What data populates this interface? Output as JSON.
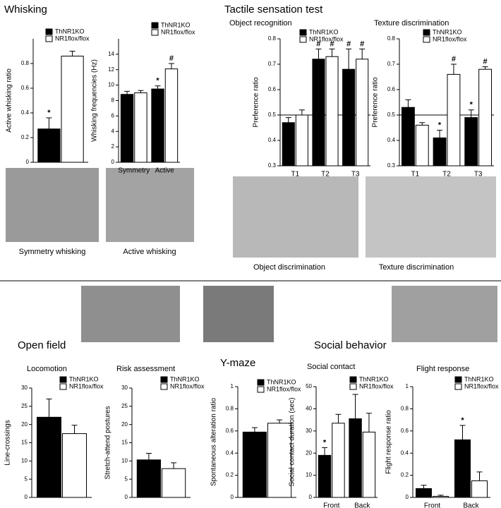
{
  "headings": [
    "Whisking",
    "Tactile sensation test",
    "Open field",
    "Y-maze",
    "Social behavior"
  ],
  "captions": [
    "Symmetry whisking",
    "Active whisking",
    "Object discrimination",
    "Texture discrimination"
  ],
  "chart_data": [
    {
      "type": "bar",
      "ylabel": "Active whisking ratio",
      "categories": [
        null
      ],
      "ylim": [
        0,
        1
      ],
      "yticks": [
        0,
        0.2,
        0.4,
        0.6,
        0.8
      ],
      "series": [
        {
          "name": "ThNR1KO",
          "color": "#000000",
          "values": [
            0.27
          ],
          "errors": [
            0.09
          ],
          "markers": [
            "*"
          ]
        },
        {
          "name": "NR1flox/flox",
          "color": "#ffffff",
          "values": [
            0.86
          ],
          "errors": [
            0.04
          ],
          "markers": [
            null
          ]
        }
      ]
    },
    {
      "type": "bar",
      "ylabel": "Whisking frequencies (Hz)",
      "categories": [
        "Symmetry",
        "Active"
      ],
      "ylim": [
        0,
        16
      ],
      "yticks": [
        0,
        2,
        4,
        6,
        8,
        10,
        12,
        14
      ],
      "series": [
        {
          "name": "ThNR1KO",
          "color": "#000000",
          "values": [
            8.8,
            9.5
          ],
          "errors": [
            0.4,
            0.4
          ],
          "markers": [
            null,
            "*"
          ]
        },
        {
          "name": "NR1flox/flox",
          "color": "#ffffff",
          "values": [
            9.0,
            12.1
          ],
          "errors": [
            0.3,
            0.7
          ],
          "markers": [
            null,
            "#"
          ]
        }
      ]
    },
    {
      "type": "bar",
      "title": "Object recognition",
      "ylabel": "Preference ratio",
      "categories": [
        "T1",
        "T2",
        "T3"
      ],
      "ylim": [
        0.3,
        0.8
      ],
      "yticks": [
        0.3,
        0.4,
        0.5,
        0.6,
        0.7,
        0.8
      ],
      "ref_line": 0.5,
      "series": [
        {
          "name": "ThNR1KO",
          "color": "#000000",
          "values": [
            0.47,
            0.72,
            0.68
          ],
          "errors": [
            0.02,
            0.04,
            0.08
          ],
          "markers": [
            null,
            "#",
            "#"
          ]
        },
        {
          "name": "NR1flox/flox",
          "color": "#ffffff",
          "values": [
            0.5,
            0.73,
            0.72
          ],
          "errors": [
            0.02,
            0.03,
            0.04
          ],
          "markers": [
            null,
            "#",
            "#"
          ]
        }
      ]
    },
    {
      "type": "bar",
      "title": "Texture discrimination",
      "ylabel": "Preference ratio",
      "categories": [
        "T1",
        "T2",
        "T3"
      ],
      "ylim": [
        0.3,
        0.8
      ],
      "yticks": [
        0.3,
        0.4,
        0.5,
        0.6,
        0.7,
        0.8
      ],
      "ref_line": 0.5,
      "series": [
        {
          "name": "ThNR1KO",
          "color": "#000000",
          "values": [
            0.53,
            0.41,
            0.49
          ],
          "errors": [
            0.03,
            0.03,
            0.03
          ],
          "markers": [
            null,
            "*",
            "*"
          ]
        },
        {
          "name": "NR1flox/flox",
          "color": "#ffffff",
          "values": [
            0.46,
            0.66,
            0.68
          ],
          "errors": [
            0.01,
            0.04,
            0.01
          ],
          "markers": [
            null,
            "#",
            "#"
          ]
        }
      ]
    },
    {
      "type": "bar",
      "title": "Locomotion",
      "ylabel": "Line-crossings",
      "categories": [
        null
      ],
      "ylim": [
        0,
        30
      ],
      "yticks": [
        0,
        5,
        10,
        15,
        20,
        25,
        30
      ],
      "series": [
        {
          "name": "ThNR1KO",
          "color": "#000000",
          "values": [
            22
          ],
          "errors": [
            5
          ],
          "markers": [
            null
          ]
        },
        {
          "name": "NR1flox/flox",
          "color": "#ffffff",
          "values": [
            17.5
          ],
          "errors": [
            2.3
          ],
          "markers": [
            null
          ]
        }
      ]
    },
    {
      "type": "bar",
      "title": "Risk assessment",
      "ylabel": "Stretch-attend postures",
      "categories": [
        null
      ],
      "ylim": [
        0,
        30
      ],
      "yticks": [
        0,
        5,
        10,
        15,
        20,
        25,
        30
      ],
      "series": [
        {
          "name": "ThNR1KO",
          "color": "#000000",
          "values": [
            10.3
          ],
          "errors": [
            1.8
          ],
          "markers": [
            null
          ]
        },
        {
          "name": "NR1flox/flox",
          "color": "#ffffff",
          "values": [
            7.9
          ],
          "errors": [
            1.6
          ],
          "markers": [
            null
          ]
        }
      ]
    },
    {
      "type": "bar",
      "ylabel": "Spontaneous alteration ratio",
      "categories": [
        null
      ],
      "ylim": [
        0,
        1
      ],
      "yticks": [
        0,
        0.2,
        0.4,
        0.6,
        0.8,
        1
      ],
      "series": [
        {
          "name": "ThNR1KO",
          "color": "#000000",
          "values": [
            0.59
          ],
          "errors": [
            0.04
          ],
          "markers": [
            null
          ]
        },
        {
          "name": "NR1flox/flox",
          "color": "#ffffff",
          "values": [
            0.67
          ],
          "errors": [
            0.03
          ],
          "markers": [
            null
          ]
        }
      ]
    },
    {
      "type": "bar",
      "title": "Social contact",
      "ylabel": "Social contact duration (sec)",
      "categories": [
        "Front",
        "Back"
      ],
      "ylim": [
        0,
        50
      ],
      "yticks": [
        0,
        10,
        20,
        30,
        40,
        50
      ],
      "series": [
        {
          "name": "ThNR1KO",
          "color": "#000000",
          "values": [
            19,
            35.5
          ],
          "errors": [
            3.5,
            11
          ],
          "markers": [
            "*",
            null
          ]
        },
        {
          "name": "NR1flox/flox",
          "color": "#ffffff",
          "values": [
            33.5,
            29.5
          ],
          "errors": [
            4,
            8.5
          ],
          "markers": [
            null,
            null
          ]
        }
      ]
    },
    {
      "type": "bar",
      "title": "Flight response",
      "ylabel": "Flight response ratio",
      "categories": [
        "Front",
        "Back"
      ],
      "ylim": [
        0,
        1
      ],
      "yticks": [
        0,
        0.2,
        0.4,
        0.6,
        0.8,
        1
      ],
      "series": [
        {
          "name": "ThNR1KO",
          "color": "#000000",
          "values": [
            0.08,
            0.52
          ],
          "errors": [
            0.03,
            0.13
          ],
          "markers": [
            null,
            "*"
          ]
        },
        {
          "name": "NR1flox/flox",
          "color": "#ffffff",
          "values": [
            0.01,
            0.15
          ],
          "errors": [
            0.01,
            0.08
          ],
          "markers": [
            null,
            null
          ]
        }
      ]
    }
  ]
}
